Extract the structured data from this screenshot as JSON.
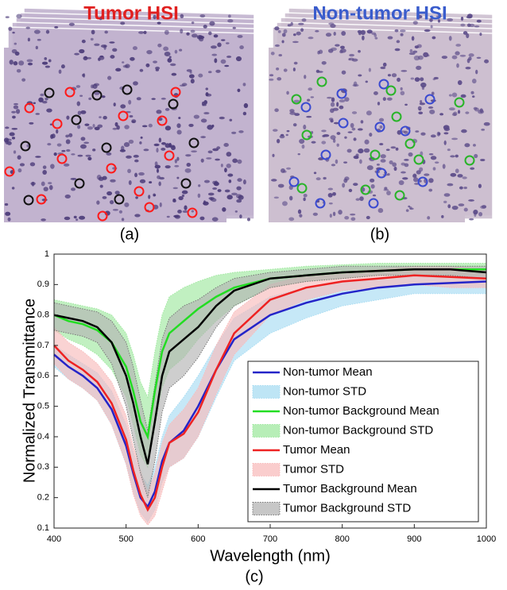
{
  "panels": {
    "a": {
      "title": "Tumor HSI",
      "label": "(a)"
    },
    "b": {
      "title": "Non-tumor HSI",
      "label": "(b)"
    }
  },
  "chart_data": {
    "type": "line",
    "label": "(c)",
    "x_label": "Wavelength (nm)",
    "y_label": "Normalized Transmittance",
    "x": [
      400,
      420,
      440,
      460,
      480,
      500,
      510,
      520,
      530,
      540,
      550,
      560,
      580,
      600,
      625,
      650,
      700,
      750,
      800,
      850,
      900,
      950,
      1000
    ],
    "xlim": [
      400,
      1000
    ],
    "xticks": [
      400,
      500,
      600,
      700,
      800,
      900,
      1000
    ],
    "ylim": [
      0.1,
      1
    ],
    "yticks": [
      0.1,
      0.2,
      0.3,
      0.4,
      0.5,
      0.6,
      0.7,
      0.8,
      0.9,
      1
    ],
    "series": [
      {
        "name": "Non-tumor Mean",
        "color": "#2424c8",
        "values": [
          0.67,
          0.63,
          0.6,
          0.56,
          0.49,
          0.37,
          0.28,
          0.2,
          0.17,
          0.22,
          0.32,
          0.38,
          0.42,
          0.5,
          0.62,
          0.72,
          0.8,
          0.84,
          0.87,
          0.89,
          0.9,
          0.905,
          0.91
        ]
      },
      {
        "name": "Non-tumor STD",
        "color": "#a8dcf2",
        "upper": [
          0.7,
          0.67,
          0.64,
          0.61,
          0.55,
          0.44,
          0.35,
          0.28,
          0.24,
          0.3,
          0.4,
          0.47,
          0.53,
          0.6,
          0.7,
          0.79,
          0.86,
          0.89,
          0.91,
          0.92,
          0.93,
          0.94,
          0.94
        ],
        "lower": [
          0.63,
          0.59,
          0.56,
          0.52,
          0.44,
          0.31,
          0.22,
          0.15,
          0.12,
          0.16,
          0.25,
          0.3,
          0.33,
          0.4,
          0.53,
          0.65,
          0.74,
          0.79,
          0.83,
          0.85,
          0.87,
          0.87,
          0.87
        ]
      },
      {
        "name": "Non-tumor Background Mean",
        "color": "#22dd22",
        "values": [
          0.8,
          0.78,
          0.77,
          0.75,
          0.71,
          0.63,
          0.55,
          0.45,
          0.4,
          0.55,
          0.68,
          0.74,
          0.78,
          0.82,
          0.86,
          0.89,
          0.92,
          0.93,
          0.94,
          0.945,
          0.95,
          0.95,
          0.95
        ]
      },
      {
        "name": "Non-tumor Background STD",
        "color": "#9fe89f",
        "upper": [
          0.85,
          0.84,
          0.83,
          0.82,
          0.8,
          0.74,
          0.67,
          0.58,
          0.53,
          0.68,
          0.8,
          0.86,
          0.89,
          0.91,
          0.93,
          0.94,
          0.95,
          0.96,
          0.965,
          0.97,
          0.97,
          0.97,
          0.97
        ],
        "lower": [
          0.75,
          0.72,
          0.7,
          0.67,
          0.62,
          0.53,
          0.44,
          0.34,
          0.3,
          0.43,
          0.56,
          0.62,
          0.66,
          0.72,
          0.78,
          0.83,
          0.89,
          0.91,
          0.92,
          0.93,
          0.93,
          0.93,
          0.93
        ]
      },
      {
        "name": "Tumor Mean",
        "color": "#ee2222",
        "values": [
          0.7,
          0.65,
          0.62,
          0.58,
          0.51,
          0.39,
          0.29,
          0.21,
          0.16,
          0.2,
          0.3,
          0.38,
          0.41,
          0.48,
          0.62,
          0.74,
          0.85,
          0.89,
          0.91,
          0.92,
          0.93,
          0.925,
          0.92
        ]
      },
      {
        "name": "Tumor STD",
        "color": "#f8bcbc",
        "upper": [
          0.76,
          0.71,
          0.68,
          0.64,
          0.58,
          0.47,
          0.37,
          0.29,
          0.22,
          0.28,
          0.38,
          0.44,
          0.49,
          0.56,
          0.7,
          0.81,
          0.9,
          0.93,
          0.94,
          0.95,
          0.96,
          0.96,
          0.95
        ],
        "lower": [
          0.64,
          0.59,
          0.56,
          0.52,
          0.44,
          0.31,
          0.21,
          0.14,
          0.11,
          0.14,
          0.22,
          0.3,
          0.33,
          0.4,
          0.54,
          0.67,
          0.8,
          0.85,
          0.88,
          0.89,
          0.9,
          0.89,
          0.89
        ]
      },
      {
        "name": "Tumor Background Mean",
        "color": "#000000",
        "values": [
          0.8,
          0.79,
          0.78,
          0.76,
          0.71,
          0.6,
          0.51,
          0.4,
          0.31,
          0.45,
          0.6,
          0.68,
          0.72,
          0.76,
          0.83,
          0.88,
          0.92,
          0.93,
          0.94,
          0.945,
          0.95,
          0.95,
          0.94
        ]
      },
      {
        "name": "Tumor Background STD",
        "color": "#b4b4b4",
        "upper": [
          0.84,
          0.83,
          0.82,
          0.81,
          0.78,
          0.71,
          0.63,
          0.52,
          0.42,
          0.57,
          0.72,
          0.79,
          0.83,
          0.85,
          0.89,
          0.92,
          0.94,
          0.95,
          0.96,
          0.96,
          0.96,
          0.96,
          0.96
        ],
        "lower": [
          0.75,
          0.74,
          0.73,
          0.71,
          0.64,
          0.5,
          0.39,
          0.28,
          0.2,
          0.32,
          0.48,
          0.56,
          0.6,
          0.66,
          0.76,
          0.83,
          0.89,
          0.91,
          0.92,
          0.93,
          0.93,
          0.93,
          0.92
        ]
      }
    ]
  }
}
